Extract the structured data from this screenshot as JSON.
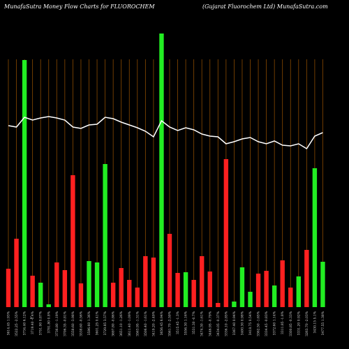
{
  "chart_data": {
    "type": "bar",
    "title": "MunafaSutra  Money Flow  Charts for FLUOROCHEM",
    "subtitle": "(Gujarat Fluorochem Ltd) MunafaSutra.com",
    "annotation": "3",
    "categories": [
      "3614.45 1.93%",
      "3522.25 -2.55%",
      "3734.40 6.12%",
      "3719.40 -0.4%",
      "3751.90 0.87%",
      "3781.80 0.8%",
      "3736.80 -1.19%",
      "3706.35 -0.81%",
      "3558.60 -3.98%",
      "3538.60 -0.56%",
      "3586.60 1.36%",
      "3601.25 0.41%",
      "3729.85 3.57%",
      "3697.80 -0.86%",
      "3651.10 -1.26%",
      "3611.40 -1.09%",
      "3563.95 -1.31%",
      "3506.40 -1.61%",
      "3419.20 -2.49%",
      "3656.45 6.94%",
      "3561.70 -2.59%",
      "3515.45 -1.3%",
      "3556.30 1.16%",
      "3531.30 -0.7%",
      "3474.30 -1.61%",
      "3446.95 -0.79%",
      "3434.05 -0.37%",
      "3336.10 -2.85%",
      "3367.40 0.94%",
      "3400.30 0.98%",
      "3418.75 0.54%",
      "3362.50 -1.65%",
      "3334.45 -0.83%",
      "3372.60 1.14%",
      "3311.85 -1.8%",
      "3300.85 -0.33%",
      "3331.20 0.92%",
      "3263.70 -2.03%",
      "3430.15 5.1%",
      "3477.55 1.38%"
    ],
    "series": [
      {
        "values": [
          55,
          98,
          354,
          45,
          35,
          4,
          64,
          53,
          189,
          34,
          66,
          64,
          205,
          35,
          56,
          39,
          28,
          73,
          71,
          392,
          105,
          49,
          50,
          39,
          73,
          51,
          6,
          212,
          8,
          57,
          22,
          48,
          52,
          31,
          67,
          28,
          44,
          82,
          199,
          65
        ],
        "colors": [
          "#ff2020",
          "#ff2020",
          "#22ee22",
          "#ff2020",
          "#22ee22",
          "#22ee22",
          "#ff2020",
          "#ff2020",
          "#ff2020",
          "#ff2020",
          "#22ee22",
          "#22ee22",
          "#22ee22",
          "#ff2020",
          "#ff2020",
          "#ff2020",
          "#ff2020",
          "#ff2020",
          "#ff2020",
          "#22ee22",
          "#ff2020",
          "#ff2020",
          "#22ee22",
          "#ff2020",
          "#ff2020",
          "#ff2020",
          "#ff2020",
          "#ff2020",
          "#22ee22",
          "#22ee22",
          "#22ee22",
          "#ff2020",
          "#ff2020",
          "#22ee22",
          "#ff2020",
          "#ff2020",
          "#22ee22",
          "#ff2020",
          "#22ee22",
          "#22ee22"
        ]
      },
      {
        "type": "line",
        "axis": "y2",
        "color": "#ffffff",
        "values": [
          260,
          258,
          272,
          268,
          271,
          273,
          271,
          268,
          258,
          256,
          261,
          262,
          272,
          270,
          265,
          261,
          257,
          252,
          244,
          267,
          258,
          253,
          257,
          254,
          248,
          245,
          244,
          234,
          237,
          241,
          243,
          237,
          234,
          238,
          232,
          231,
          234,
          227,
          245,
          250
        ]
      }
    ],
    "ylim": [
      0,
      400
    ],
    "y2lim": [
      0,
      400
    ],
    "grid_color": "#8a4a00"
  }
}
